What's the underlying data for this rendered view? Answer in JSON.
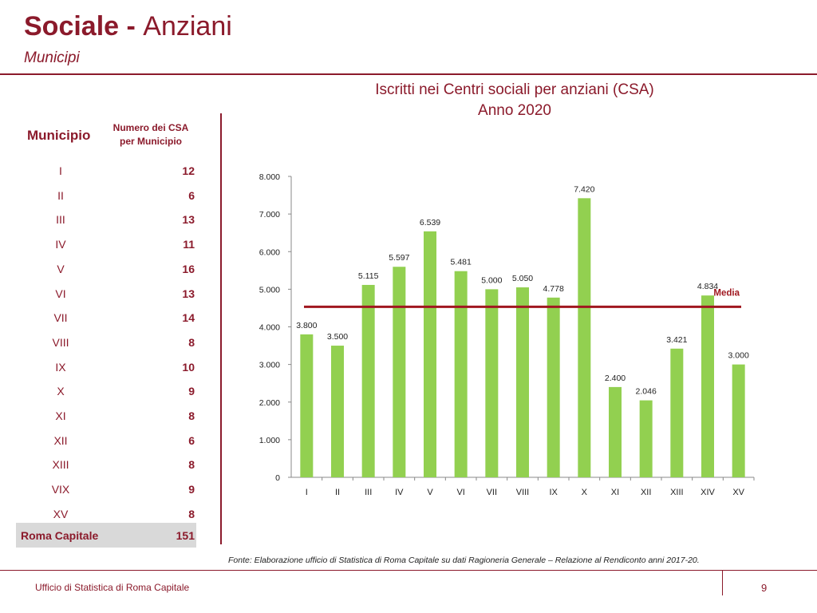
{
  "header": {
    "title_bold": "Sociale - ",
    "title_light": "Anziani",
    "subtitle": "Municipi"
  },
  "chart_title": {
    "line1": "Iscritti nei Centri sociali per anziani (CSA)",
    "line2": "Anno 2020"
  },
  "table": {
    "col_municipio": "Municipio",
    "col_numero_line1": "Numero dei CSA",
    "col_numero_line2": "per Municipio",
    "rows": [
      {
        "municipio": "I",
        "numero": "12"
      },
      {
        "municipio": "II",
        "numero": "6"
      },
      {
        "municipio": "III",
        "numero": "13"
      },
      {
        "municipio": "IV",
        "numero": "11"
      },
      {
        "municipio": "V",
        "numero": "16"
      },
      {
        "municipio": "VI",
        "numero": "13"
      },
      {
        "municipio": "VII",
        "numero": "14"
      },
      {
        "municipio": "VIII",
        "numero": "8"
      },
      {
        "municipio": "IX",
        "numero": "10"
      },
      {
        "municipio": "X",
        "numero": "9"
      },
      {
        "municipio": "XI",
        "numero": "8"
      },
      {
        "municipio": "XII",
        "numero": "6"
      },
      {
        "municipio": "XIII",
        "numero": "8"
      },
      {
        "municipio": "VIX",
        "numero": "9"
      },
      {
        "municipio": "XV",
        "numero": "8"
      }
    ],
    "total_label": "Roma Capitale",
    "total_value": "151"
  },
  "chart_data": {
    "type": "bar",
    "categories": [
      "I",
      "II",
      "III",
      "IV",
      "V",
      "VI",
      "VII",
      "VIII",
      "IX",
      "X",
      "XI",
      "XII",
      "XIII",
      "XIV",
      "XV"
    ],
    "values": [
      3800,
      3500,
      5115,
      5597,
      6539,
      5481,
      5000,
      5050,
      4778,
      7420,
      2400,
      2046,
      3421,
      4834,
      3000
    ],
    "value_labels": [
      "3.800",
      "3.500",
      "5.115",
      "5.597",
      "6.539",
      "5.481",
      "5.000",
      "5.050",
      "4.778",
      "7.420",
      "2.400",
      "2.046",
      "3.421",
      "4.834",
      "3.000"
    ],
    "ylim": [
      0,
      8000
    ],
    "yticks": [
      0,
      1000,
      2000,
      3000,
      4000,
      5000,
      6000,
      7000,
      8000
    ],
    "ytick_labels": [
      "0",
      "1.000",
      "2.000",
      "3.000",
      "4.000",
      "5.000",
      "6.000",
      "7.000",
      "8.000"
    ],
    "reference_line": {
      "label": "Media",
      "value": 4532
    },
    "bar_color": "#92d050",
    "line_color": "#a0171f",
    "grid": false
  },
  "source": "Fonte: Elaborazione ufficio di Statistica di Roma Capitale su dati Ragioneria Generale – Relazione al Rendiconto anni 2017-20.",
  "footer": {
    "office": "Ufficio di Statistica di Roma Capitale",
    "page": "9"
  },
  "colors": {
    "brand": "#8b1a2b"
  }
}
